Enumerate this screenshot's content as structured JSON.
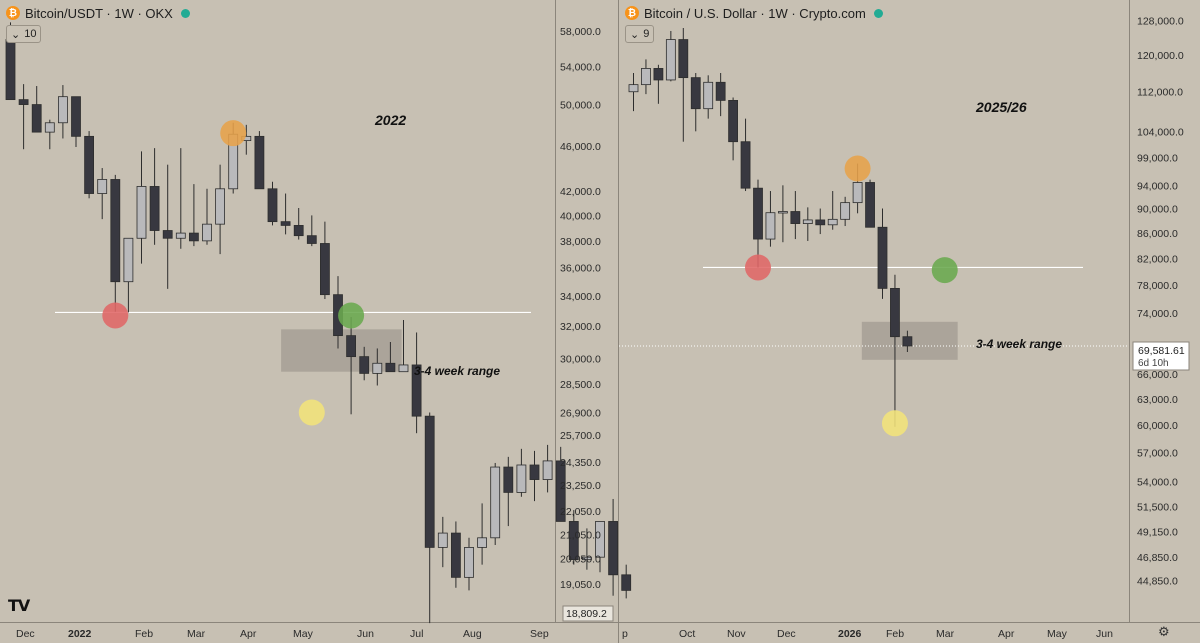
{
  "left": {
    "title": "Bitcoin/USDT · 1W · OKX",
    "indicator_value": "10",
    "year_label": "2022",
    "range_label": "3-4 week range",
    "price_ticks": [
      "58,000.0",
      "54,000.0",
      "50,000.0",
      "46,000.0",
      "42,000.0",
      "40,000.0",
      "38,000.0",
      "36,000.0",
      "34,000.0",
      "32,000.0",
      "30,000.0",
      "28,500.0",
      "26,900.0",
      "25,700.0",
      "24,350.0",
      "23,250.0",
      "22,050.0",
      "21,050.0",
      "20,050.0",
      "19,050.0"
    ],
    "last_price": "18,809.2",
    "time_ticks": [
      "Dec",
      "2022",
      "Feb",
      "Mar",
      "Apr",
      "May",
      "Jun",
      "Jul",
      "Aug",
      "Sep"
    ]
  },
  "right": {
    "title": "Bitcoin / U.S. Dollar · 1W · Crypto.com",
    "indicator_value": "9",
    "year_label": "2025/26",
    "range_label": "3-4 week range",
    "price_ticks": [
      "128,000.0",
      "120,000.0",
      "112,000.0",
      "104,000.0",
      "99,000.0",
      "94,000.0",
      "90,000.0",
      "86,000.0",
      "82,000.0",
      "78,000.0",
      "74,000.0",
      "66,000.0",
      "63,000.0",
      "60,000.0",
      "57,000.0",
      "54,000.0",
      "51,500.0",
      "49,150.0",
      "46,850.0",
      "44,850.0"
    ],
    "last_price": "69,581.61",
    "countdown": "6d 10h",
    "time_ticks": [
      "p",
      "Oct",
      "Nov",
      "Dec",
      "2026",
      "Feb",
      "Mar",
      "Apr",
      "May",
      "Jun"
    ]
  },
  "colors": {
    "background": "#c7c0b3",
    "up_candle": "#b9b9bb",
    "down_candle": "#383840",
    "wick": "#2d2d2d",
    "marker_red": "#e06666",
    "marker_orange": "#e7a24a",
    "marker_green": "#6aa84f",
    "marker_yellow": "#f2e27a",
    "range_box": "#a19b91",
    "level_line": "#ffffff"
  },
  "chart_data": [
    {
      "type": "candlestick",
      "title": "Bitcoin/USDT · 1W · OKX",
      "interval": "1W",
      "log_scale": true,
      "ylim": [
        18000,
        60000
      ],
      "annotations": {
        "support_level": 32900,
        "range_box": {
          "from": "May 2022",
          "to": "Jun 2022",
          "low": 29200,
          "high": 31800,
          "label": "3-4 week range"
        },
        "markers": [
          {
            "color": "red",
            "price": 32700,
            "date": "late Jan 2022"
          },
          {
            "color": "orange",
            "price": 47200,
            "date": "late Mar 2022"
          },
          {
            "color": "green",
            "price": 32700,
            "date": "late May 2022"
          },
          {
            "color": "yellow",
            "price": 26900,
            "date": "mid May 2022"
          }
        ]
      },
      "candles": [
        {
          "o": 57000,
          "h": 59000,
          "l": 50500,
          "c": 50500
        },
        {
          "o": 50500,
          "h": 52100,
          "l": 45700,
          "c": 50000
        },
        {
          "o": 50000,
          "h": 51900,
          "l": 47300,
          "c": 47300
        },
        {
          "o": 47300,
          "h": 48500,
          "l": 45700,
          "c": 48200
        },
        {
          "o": 48200,
          "h": 52000,
          "l": 46700,
          "c": 50800
        },
        {
          "o": 50800,
          "h": 50800,
          "l": 45900,
          "c": 46900
        },
        {
          "o": 46900,
          "h": 47400,
          "l": 41400,
          "c": 41800
        },
        {
          "o": 41800,
          "h": 44000,
          "l": 39700,
          "c": 43000
        },
        {
          "o": 43000,
          "h": 43400,
          "l": 32950,
          "c": 35000
        },
        {
          "o": 35000,
          "h": 38200,
          "l": 32900,
          "c": 38200
        },
        {
          "o": 38200,
          "h": 45500,
          "l": 36300,
          "c": 42400
        },
        {
          "o": 42400,
          "h": 45800,
          "l": 37700,
          "c": 38800
        },
        {
          "o": 38800,
          "h": 44300,
          "l": 34500,
          "c": 38200
        },
        {
          "o": 38200,
          "h": 45800,
          "l": 37400,
          "c": 38600
        },
        {
          "o": 38600,
          "h": 42600,
          "l": 37600,
          "c": 38000
        },
        {
          "o": 38000,
          "h": 42200,
          "l": 37700,
          "c": 39300
        },
        {
          "o": 39300,
          "h": 44300,
          "l": 37000,
          "c": 42200
        },
        {
          "o": 42200,
          "h": 48200,
          "l": 41800,
          "c": 47100
        },
        {
          "o": 46500,
          "h": 48000,
          "l": 45200,
          "c": 46900
        },
        {
          "o": 46900,
          "h": 47400,
          "l": 42300,
          "c": 42200
        },
        {
          "o": 42200,
          "h": 42800,
          "l": 39200,
          "c": 39500
        },
        {
          "o": 39500,
          "h": 41800,
          "l": 38500,
          "c": 39200
        },
        {
          "o": 39200,
          "h": 40600,
          "l": 38100,
          "c": 38400
        },
        {
          "o": 38400,
          "h": 40000,
          "l": 37600,
          "c": 37800
        },
        {
          "o": 37800,
          "h": 39500,
          "l": 33800,
          "c": 34100
        },
        {
          "o": 34100,
          "h": 35400,
          "l": 30600,
          "c": 31400
        },
        {
          "o": 31400,
          "h": 32600,
          "l": 26800,
          "c": 30100
        },
        {
          "o": 30100,
          "h": 30700,
          "l": 28700,
          "c": 29100
        },
        {
          "o": 29100,
          "h": 30600,
          "l": 28400,
          "c": 29700
        },
        {
          "o": 29700,
          "h": 31000,
          "l": 29300,
          "c": 29200
        },
        {
          "o": 29200,
          "h": 32400,
          "l": 29300,
          "c": 29600
        },
        {
          "o": 29600,
          "h": 31600,
          "l": 25800,
          "c": 26700
        },
        {
          "o": 26700,
          "h": 26900,
          "l": 17600,
          "c": 20500
        },
        {
          "o": 20500,
          "h": 21800,
          "l": 19700,
          "c": 21100
        },
        {
          "o": 21100,
          "h": 21600,
          "l": 18900,
          "c": 19300
        },
        {
          "o": 19300,
          "h": 20900,
          "l": 18800,
          "c": 20500
        },
        {
          "o": 20500,
          "h": 22400,
          "l": 19800,
          "c": 20900
        },
        {
          "o": 20900,
          "h": 24300,
          "l": 20600,
          "c": 24100
        },
        {
          "o": 24100,
          "h": 24600,
          "l": 21400,
          "c": 22900
        },
        {
          "o": 22900,
          "h": 25000,
          "l": 22700,
          "c": 24200
        },
        {
          "o": 24200,
          "h": 24900,
          "l": 22500,
          "c": 23500
        },
        {
          "o": 23500,
          "h": 25200,
          "l": 22900,
          "c": 24400
        },
        {
          "o": 24400,
          "h": 25100,
          "l": 21600,
          "c": 21600
        },
        {
          "o": 21600,
          "h": 22100,
          "l": 19800,
          "c": 20000
        },
        {
          "o": 20000,
          "h": 21300,
          "l": 19600,
          "c": 20100
        },
        {
          "o": 20100,
          "h": 21500,
          "l": 19500,
          "c": 21600
        },
        {
          "o": 21600,
          "h": 22600,
          "l": 18600,
          "c": 19400
        },
        {
          "o": 19400,
          "h": 19800,
          "l": 18500,
          "c": 18800
        }
      ]
    },
    {
      "type": "candlestick",
      "title": "Bitcoin / U.S. Dollar · 1W · Crypto.com",
      "interval": "1W",
      "log_scale": true,
      "ylim": [
        43000,
        132000
      ],
      "annotations": {
        "support_level": 80600,
        "range_box": {
          "from": "Jan 2026",
          "to": "Feb 2026",
          "low": 67800,
          "high": 72800,
          "label": "3-4 week range"
        },
        "last_price_line": 69581.61,
        "markers": [
          {
            "color": "red",
            "price": 80600,
            "date": "late Nov 2025"
          },
          {
            "color": "orange",
            "price": 97000,
            "date": "mid Jan 2026"
          },
          {
            "color": "green",
            "price": 80200,
            "date": "early Mar 2026"
          },
          {
            "color": "yellow",
            "price": 60200,
            "date": "early Feb 2026"
          }
        ]
      },
      "candles": [
        {
          "o": 112000,
          "h": 116000,
          "l": 108000,
          "c": 113500
        },
        {
          "o": 113500,
          "h": 119000,
          "l": 111500,
          "c": 117000
        },
        {
          "o": 117000,
          "h": 117800,
          "l": 109500,
          "c": 114500
        },
        {
          "o": 114500,
          "h": 125500,
          "l": 114200,
          "c": 123500
        },
        {
          "o": 123500,
          "h": 126200,
          "l": 102000,
          "c": 115000
        },
        {
          "o": 115000,
          "h": 116000,
          "l": 104000,
          "c": 108500
        },
        {
          "o": 108500,
          "h": 115500,
          "l": 106500,
          "c": 114000
        },
        {
          "o": 114000,
          "h": 116000,
          "l": 107000,
          "c": 110200
        },
        {
          "o": 110200,
          "h": 110800,
          "l": 98500,
          "c": 102000
        },
        {
          "o": 102000,
          "h": 106500,
          "l": 93000,
          "c": 93500
        },
        {
          "o": 93500,
          "h": 95000,
          "l": 80600,
          "c": 85000
        },
        {
          "o": 85000,
          "h": 93000,
          "l": 83800,
          "c": 89300
        },
        {
          "o": 89300,
          "h": 94000,
          "l": 84500,
          "c": 89500
        },
        {
          "o": 89500,
          "h": 93000,
          "l": 85000,
          "c": 87500
        },
        {
          "o": 87500,
          "h": 90200,
          "l": 84700,
          "c": 88100
        },
        {
          "o": 88100,
          "h": 90000,
          "l": 85800,
          "c": 87300
        },
        {
          "o": 87300,
          "h": 93000,
          "l": 86500,
          "c": 88200
        },
        {
          "o": 88200,
          "h": 92000,
          "l": 87100,
          "c": 91000
        },
        {
          "o": 91000,
          "h": 97900,
          "l": 89200,
          "c": 94500
        },
        {
          "o": 94500,
          "h": 95000,
          "l": 86900,
          "c": 86900
        },
        {
          "o": 86900,
          "h": 90000,
          "l": 76000,
          "c": 77500
        },
        {
          "o": 77500,
          "h": 79500,
          "l": 59800,
          "c": 70800
        },
        {
          "o": 70800,
          "h": 71600,
          "l": 68800,
          "c": 69580
        }
      ]
    }
  ]
}
